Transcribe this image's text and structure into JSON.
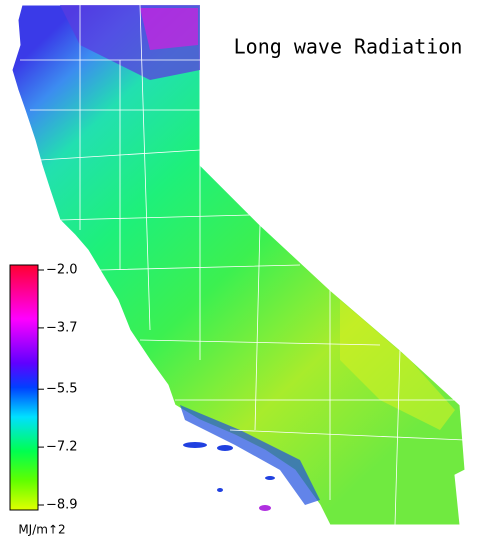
{
  "title": "Long wave Radiation",
  "colorbar": {
    "lim": [
      -8.9,
      -2.0
    ],
    "ticks": [
      {
        "value": -2.0,
        "label": "−2.0"
      },
      {
        "value": -3.7,
        "label": "−3.7"
      },
      {
        "value": -5.5,
        "label": "−5.5"
      },
      {
        "value": -7.2,
        "label": "−7.2"
      },
      {
        "value": -8.9,
        "label": "−8.9"
      }
    ],
    "units": "MJ/m↑2"
  }
}
